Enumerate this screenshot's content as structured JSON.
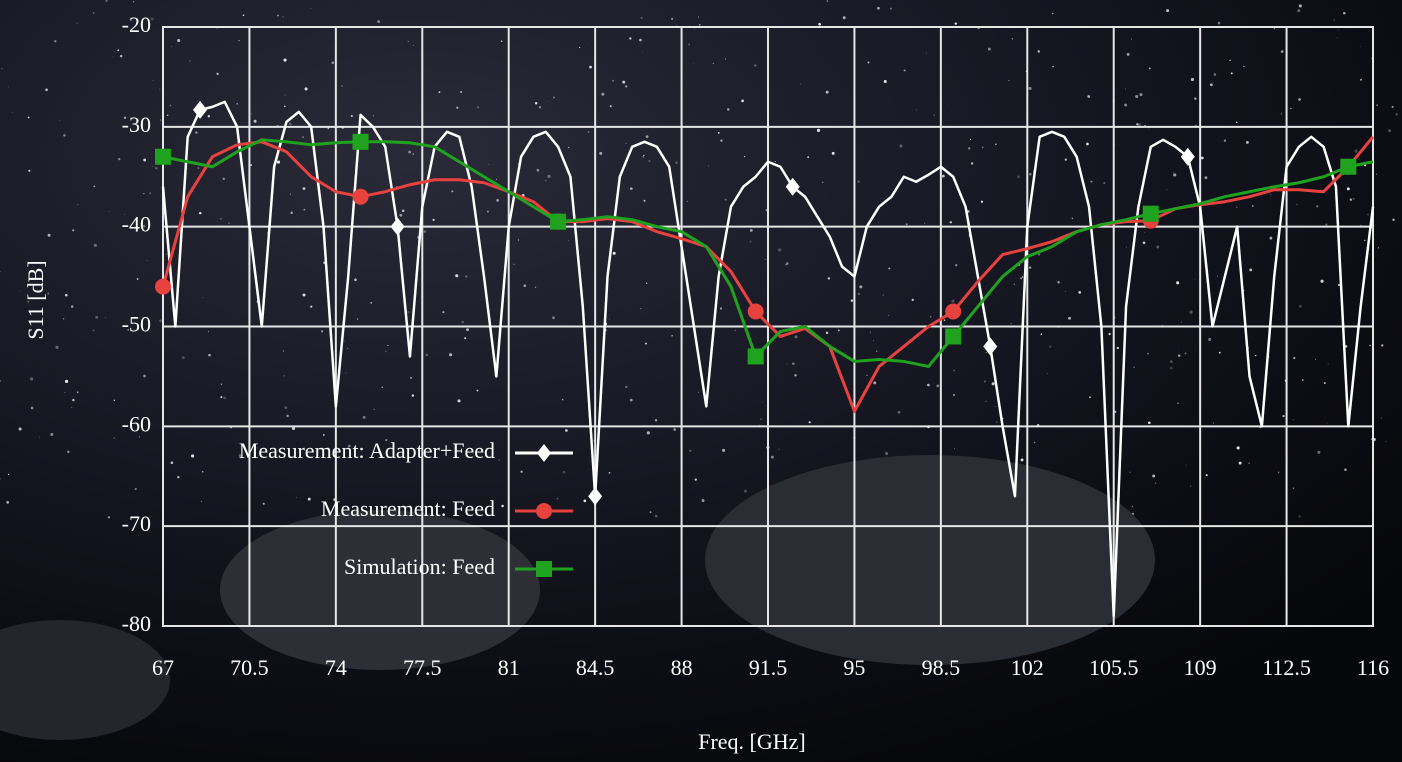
{
  "chart_data": {
    "type": "line",
    "xlabel": "Freq. [GHz]",
    "ylabel": "S11 [dB]",
    "xlim": [
      67,
      116
    ],
    "ylim": [
      -80,
      -20
    ],
    "xticks": [
      67,
      70.5,
      74,
      77.5,
      81,
      84.5,
      88,
      91.5,
      95,
      98.5,
      102,
      105.5,
      109,
      112.5,
      116
    ],
    "yticks": [
      -20,
      -30,
      -40,
      -50,
      -60,
      -70,
      -80
    ],
    "grid": true,
    "legend": "lower-left",
    "series": [
      {
        "name": "Measurement: Adapter+Feed",
        "color": "#ffffff",
        "marker": "diamond",
        "x": [
          67,
          67.5,
          68,
          68.5,
          69,
          69.5,
          70,
          70.5,
          71,
          71.5,
          72,
          72.5,
          73,
          73.5,
          74,
          74.5,
          75,
          75.5,
          76,
          76.5,
          77,
          77.5,
          78,
          78.5,
          79,
          79.5,
          80,
          80.5,
          81,
          81.5,
          82,
          82.5,
          83,
          83.5,
          84,
          84.5,
          85,
          85.5,
          86,
          86.5,
          87,
          87.5,
          88,
          88.5,
          89,
          89.5,
          90,
          90.5,
          91,
          91.5,
          92,
          92.5,
          93,
          93.5,
          94,
          94.5,
          95,
          95.5,
          96,
          96.5,
          97,
          97.5,
          98,
          98.5,
          99,
          99.5,
          100,
          100.5,
          101,
          101.5,
          102,
          102.5,
          103,
          103.5,
          104,
          104.5,
          105,
          105.5,
          106,
          106.5,
          107,
          107.5,
          108,
          108.5,
          109,
          109.5,
          110,
          110.5,
          111,
          111.5,
          112,
          112.5,
          113,
          113.5,
          114,
          114.5,
          115,
          115.5,
          116
        ],
        "values": [
          -36,
          -50,
          -31,
          -28.3,
          -28,
          -27.5,
          -30,
          -40,
          -50,
          -34,
          -29.5,
          -28.5,
          -30,
          -40,
          -58,
          -45,
          -28.8,
          -30,
          -32,
          -40,
          -53,
          -38,
          -32,
          -30.5,
          -31,
          -36,
          -45,
          -55,
          -40,
          -33,
          -31,
          -30.5,
          -32,
          -35,
          -48,
          -67,
          -45,
          -35,
          -32,
          -31.5,
          -32,
          -34,
          -42,
          -50,
          -58,
          -45,
          -38,
          -36,
          -35,
          -33.5,
          -34,
          -36,
          -37,
          -39,
          -41,
          -44,
          -45,
          -40,
          -38,
          -37,
          -35,
          -35.5,
          -34.8,
          -34,
          -35,
          -38,
          -45,
          -52,
          -60,
          -67,
          -40,
          -31,
          -30.5,
          -31,
          -33,
          -38,
          -50,
          -79,
          -48,
          -38,
          -32,
          -31.3,
          -32,
          -33,
          -38,
          -50,
          -45,
          -40,
          -55,
          -60,
          -45,
          -34,
          -32,
          -31,
          -32,
          -36,
          -60,
          -48,
          -38
        ]
      },
      {
        "name": "Measurement: Feed",
        "color": "#e8423f",
        "marker": "circle",
        "x": [
          67,
          68,
          69,
          70,
          71,
          72,
          73,
          74,
          75,
          76,
          77,
          78,
          79,
          80,
          81,
          82,
          83,
          84,
          85,
          86,
          87,
          88,
          89,
          90,
          91,
          92,
          93,
          94,
          95,
          96,
          97,
          98,
          99,
          100,
          101,
          102,
          103,
          104,
          105,
          106,
          107,
          108,
          109,
          110,
          111,
          112,
          113,
          114,
          115,
          116
        ],
        "values": [
          -46,
          -37,
          -33,
          -31.8,
          -31.5,
          -32.5,
          -35,
          -36.5,
          -37,
          -36.5,
          -35.8,
          -35.3,
          -35.3,
          -35.6,
          -36.5,
          -37.5,
          -39.5,
          -39.5,
          -39.2,
          -39.5,
          -40.5,
          -41.2,
          -42,
          -44.5,
          -48.5,
          -51,
          -50.2,
          -52,
          -58.5,
          -54,
          -52,
          -50,
          -48.5,
          -45.5,
          -42.8,
          -42.2,
          -41.5,
          -40.5,
          -39.8,
          -39.5,
          -39.4,
          -38.2,
          -37.8,
          -37.5,
          -37,
          -36.3,
          -36.3,
          -36.5,
          -34,
          -31
        ]
      },
      {
        "name": "Simulation: Feed",
        "color": "#1fa31f",
        "marker": "square",
        "x": [
          67,
          68,
          69,
          70,
          71,
          72,
          73,
          74,
          75,
          76,
          77,
          78,
          79,
          80,
          81,
          82,
          83,
          84,
          85,
          86,
          87,
          88,
          89,
          90,
          91,
          92,
          93,
          94,
          95,
          96,
          97,
          98,
          99,
          100,
          101,
          102,
          103,
          104,
          105,
          106,
          107,
          108,
          109,
          110,
          111,
          112,
          113,
          114,
          115,
          116
        ],
        "values": [
          -33,
          -33.5,
          -34,
          -32.5,
          -31.3,
          -31.5,
          -31.8,
          -31.6,
          -31.5,
          -31.5,
          -31.6,
          -32,
          -33.5,
          -35,
          -36.5,
          -38,
          -39.5,
          -39.3,
          -39,
          -39.3,
          -40,
          -40.5,
          -42,
          -46,
          -53,
          -50.5,
          -50,
          -52,
          -53.5,
          -53.3,
          -53.5,
          -54,
          -51,
          -48,
          -45,
          -43,
          -42,
          -40.5,
          -39.8,
          -39.3,
          -38.7,
          -38.2,
          -37.7,
          -37,
          -36.5,
          -36,
          -35.6,
          -35,
          -34,
          -33.5
        ]
      }
    ]
  }
}
